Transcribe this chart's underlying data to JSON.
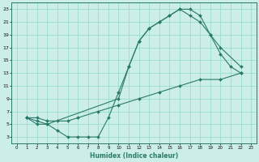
{
  "xlabel": "Humidex (Indice chaleur)",
  "bg_color": "#cceee8",
  "grid_color": "#99ddcc",
  "line_color": "#2a7a6a",
  "xlim": [
    -0.5,
    23.5
  ],
  "ylim": [
    2,
    24
  ],
  "xticks": [
    0,
    1,
    2,
    3,
    4,
    5,
    6,
    7,
    8,
    9,
    10,
    11,
    12,
    13,
    14,
    15,
    16,
    17,
    18,
    19,
    20,
    21,
    22,
    23
  ],
  "yticks": [
    3,
    5,
    7,
    9,
    11,
    13,
    15,
    17,
    19,
    21,
    23
  ],
  "curve1_x": [
    1,
    2,
    3,
    4,
    5,
    6,
    7,
    8,
    9,
    10,
    11,
    12,
    13,
    14,
    15,
    16,
    17,
    18,
    19,
    20,
    21,
    22
  ],
  "curve1_y": [
    6,
    5,
    5,
    4,
    3,
    3,
    3,
    3,
    6,
    10,
    14,
    18,
    20,
    21,
    22,
    23,
    23,
    22,
    19,
    16,
    14,
    13
  ],
  "curve2_x": [
    1,
    2,
    3,
    10,
    11,
    12,
    13,
    14,
    15,
    16,
    17,
    18,
    19,
    20,
    22
  ],
  "curve2_y": [
    6,
    5.5,
    5,
    9,
    14,
    18,
    20,
    21,
    22,
    23,
    22,
    21,
    19,
    17,
    14
  ],
  "curve3_x": [
    1,
    2,
    3,
    4,
    5,
    6,
    8,
    10,
    12,
    14,
    16,
    18,
    20,
    22
  ],
  "curve3_y": [
    6,
    6,
    5.5,
    5.5,
    5.5,
    6,
    7,
    8,
    9,
    10,
    11,
    12,
    12,
    13
  ]
}
